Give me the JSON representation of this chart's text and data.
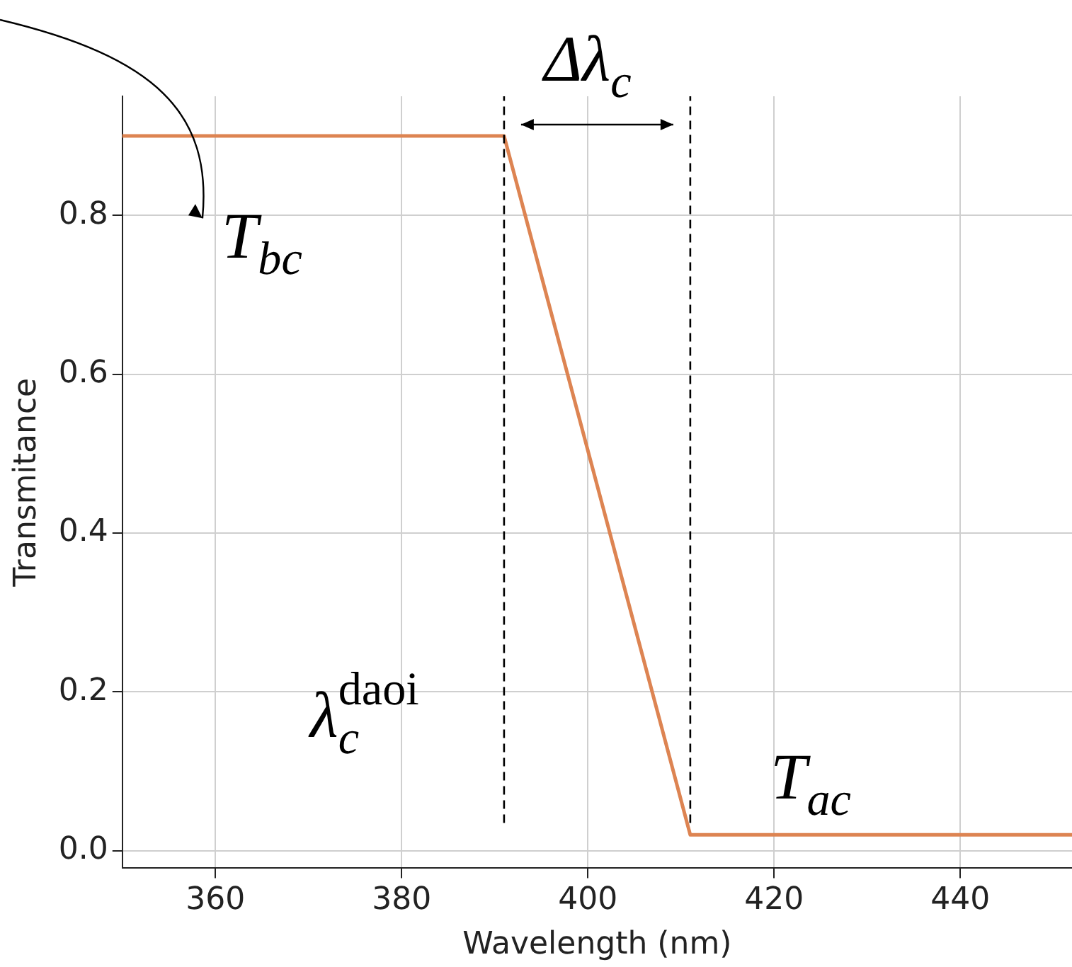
{
  "chart_data": {
    "type": "line",
    "xlabel": "Wavelength (nm)",
    "ylabel": "Transmitance",
    "series": [
      {
        "color": "#dd8452",
        "x": [
          350,
          391,
          411,
          452
        ],
        "values": [
          0.9,
          0.9,
          0.02,
          0.02
        ]
      }
    ],
    "xlim": [
      350,
      452
    ],
    "xticks": [
      360,
      380,
      400,
      420,
      440
    ],
    "ylim": [
      -0.022,
      0.95
    ],
    "yticks": [
      {
        "value": 0,
        "label": "0.0"
      },
      0.2,
      0.4,
      0.6,
      0.8
    ],
    "grid": true,
    "legend": false,
    "marker": "none",
    "line_style": "solid",
    "ref_lines": [
      {
        "axis": "x",
        "value": 391,
        "line_style": "dashed",
        "color": "#000000"
      },
      {
        "axis": "x",
        "value": 411,
        "line_style": "dashed",
        "color": "#000000"
      }
    ],
    "annotations": [
      "Δλ$_{c}$",
      "T$_{bc}$",
      "λ$_{c}$$^{daoi}$",
      "T$_{ac}$"
    ]
  }
}
